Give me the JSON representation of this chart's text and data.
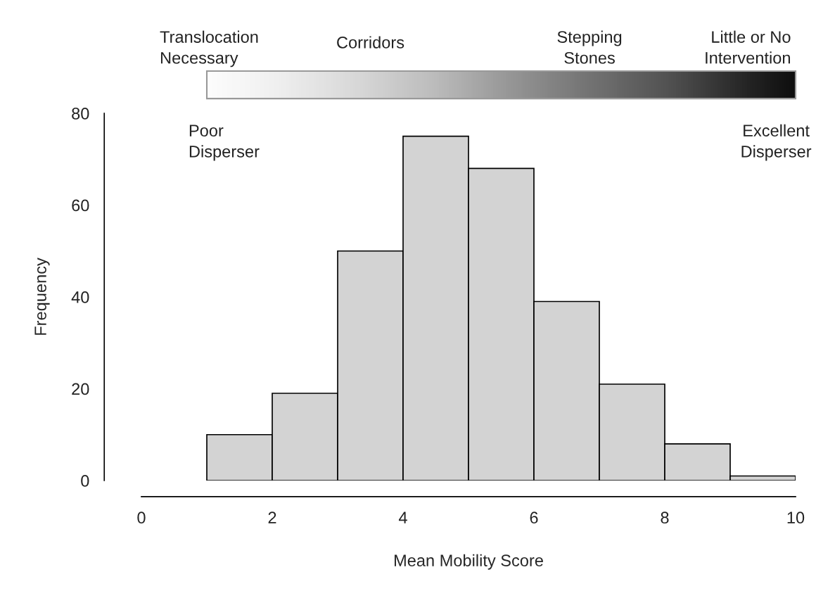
{
  "chart_data": {
    "type": "histogram",
    "xlabel": "Mean Mobility Score",
    "ylabel": "Frequency",
    "bins": [
      1,
      2,
      3,
      4,
      5,
      6,
      7,
      8,
      9,
      10
    ],
    "values": [
      10,
      19,
      50,
      75,
      68,
      39,
      21,
      8,
      1
    ],
    "color": "#d3d3d3",
    "xlim": [
      0,
      10
    ],
    "xticks": [
      0,
      2,
      4,
      6,
      8,
      10
    ],
    "ylim": [
      0,
      80
    ],
    "yticks": [
      0,
      20,
      40,
      60,
      80
    ],
    "grid": false,
    "annotations": [
      "Translocation\nNecessary",
      "Corridors",
      "Stepping\nStones",
      "Little or No\nIntervention",
      "Poor\nDisperser",
      "Excellent\nDisperser"
    ]
  }
}
